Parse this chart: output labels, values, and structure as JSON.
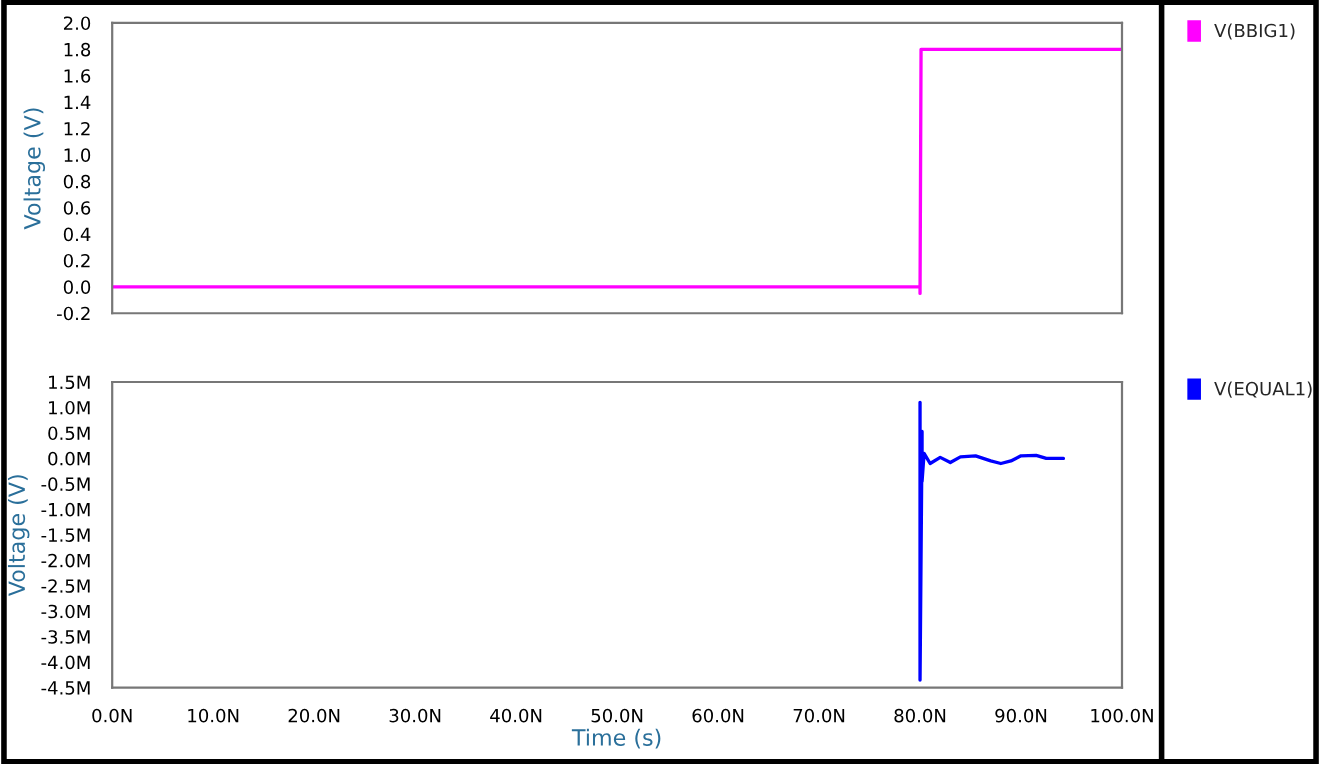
{
  "chart_data": [
    {
      "type": "line",
      "ylabel": "Voltage (V)",
      "x": [
        0,
        80,
        80,
        80.1,
        100
      ],
      "series": [
        {
          "name": "V(BBIG1)",
          "color": "#ff00ff",
          "values": [
            0,
            0,
            -0.05,
            1.8,
            1.8
          ]
        }
      ],
      "xlim": [
        0,
        100
      ],
      "ylim": [
        -0.2,
        2.0
      ],
      "xticks": [
        {
          "value": 0,
          "label": null
        },
        {
          "value": 10,
          "label": null
        },
        {
          "value": 20,
          "label": null
        },
        {
          "value": 30,
          "label": null
        },
        {
          "value": 40,
          "label": null
        },
        {
          "value": 50,
          "label": null
        },
        {
          "value": 60,
          "label": null
        },
        {
          "value": 70,
          "label": null
        },
        {
          "value": 80,
          "label": null
        },
        {
          "value": 90,
          "label": null
        },
        {
          "value": 100,
          "label": null
        }
      ],
      "yticks": [
        {
          "value": 2.0,
          "label": "2.0"
        },
        {
          "value": 1.8,
          "label": "1.8"
        },
        {
          "value": 1.6,
          "label": "1.6"
        },
        {
          "value": 1.4,
          "label": "1.4"
        },
        {
          "value": 1.2,
          "label": "1.2"
        },
        {
          "value": 1.0,
          "label": "1.0"
        },
        {
          "value": 0.8,
          "label": "0.8"
        },
        {
          "value": 0.6,
          "label": "0.6"
        },
        {
          "value": 0.4,
          "label": "0.4"
        },
        {
          "value": 0.2,
          "label": "0.2"
        },
        {
          "value": 0.0,
          "label": "0.0"
        },
        {
          "value": -0.2,
          "label": "-0.2"
        }
      ],
      "tick_labels": "y",
      "legend": "right"
    },
    {
      "type": "line",
      "ylabel": "Voltage (V)",
      "xlabel": "Time (s)",
      "x": [
        80,
        80,
        80,
        80.2,
        80.2,
        80.4,
        81,
        82,
        83,
        84,
        85.5,
        87,
        88,
        89,
        90,
        91.5,
        92.5,
        94.2
      ],
      "series": [
        {
          "name": "V(EQUAL1)",
          "color": "#0000ff",
          "values": [
            0,
            1.1,
            -4.35,
            0.53,
            -0.45,
            0.1,
            -0.1,
            0.02,
            -0.08,
            0.03,
            0.05,
            -0.05,
            -0.1,
            -0.05,
            0.05,
            0.06,
            0.0,
            0.0
          ]
        }
      ],
      "xlim": [
        0,
        100
      ],
      "ylim": [
        -4.5,
        1.5
      ],
      "xticks": [
        {
          "value": 0,
          "label": "0.0N"
        },
        {
          "value": 10,
          "label": "10.0N"
        },
        {
          "value": 20,
          "label": "20.0N"
        },
        {
          "value": 30,
          "label": "30.0N"
        },
        {
          "value": 40,
          "label": "40.0N"
        },
        {
          "value": 50,
          "label": "50.0N"
        },
        {
          "value": 60,
          "label": "60.0N"
        },
        {
          "value": 70,
          "label": "70.0N"
        },
        {
          "value": 80,
          "label": "80.0N"
        },
        {
          "value": 90,
          "label": "90.0N"
        },
        {
          "value": 100,
          "label": "100.0N"
        }
      ],
      "yticks": [
        {
          "value": 1.5,
          "label": "1.5M"
        },
        {
          "value": 1.0,
          "label": "1.0M"
        },
        {
          "value": 0.5,
          "label": "0.5M"
        },
        {
          "value": 0.0,
          "label": "0.0M"
        },
        {
          "value": -0.5,
          "label": "-0.5M"
        },
        {
          "value": -1.0,
          "label": "-1.0M"
        },
        {
          "value": -1.5,
          "label": "-1.5M"
        },
        {
          "value": -2.0,
          "label": "-2.0M"
        },
        {
          "value": -2.5,
          "label": "-2.5M"
        },
        {
          "value": -3.0,
          "label": "-3.0M"
        },
        {
          "value": -3.5,
          "label": "-3.5M"
        },
        {
          "value": -4.0,
          "label": "-4.0M"
        },
        {
          "value": -4.5,
          "label": "-4.5M"
        }
      ],
      "legend": "right"
    }
  ]
}
